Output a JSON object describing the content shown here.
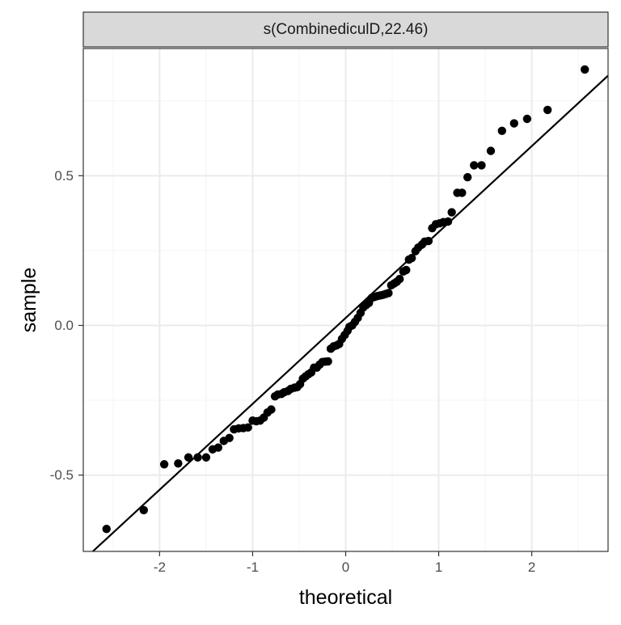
{
  "chart_data": {
    "type": "scatter",
    "title": "",
    "strip_label": "s(CombinediculD,22.46)",
    "xlabel": "theoretical",
    "ylabel": "sample",
    "xlim": [
      -2.82,
      2.82
    ],
    "ylim": [
      -0.755,
      0.925
    ],
    "x_ticks": [
      -2,
      -1,
      0,
      1,
      2
    ],
    "x_tick_labels": [
      "-2",
      "-1",
      "0",
      "1",
      "2"
    ],
    "y_ticks": [
      -0.5,
      0.0,
      0.5
    ],
    "y_tick_labels": [
      "-0.5",
      "0.0",
      "0.5"
    ],
    "grid": true,
    "theme": "black-and-white",
    "colors": {
      "panel_border": "#333333",
      "grid_major": "#ebebeb",
      "grid_minor": "#f4f4f4",
      "strip_fill": "#d9d9d9",
      "points": "#000000",
      "reference_line": "#000000"
    },
    "reference_line": {
      "intercept": 0.025,
      "slope": 0.287
    },
    "series": [
      {
        "points": [
          [
            -2.57,
            -0.68
          ],
          [
            -2.17,
            -0.617
          ],
          [
            -1.95,
            -0.464
          ],
          [
            -1.8,
            -0.461
          ],
          [
            -1.69,
            -0.441
          ],
          [
            -1.59,
            -0.441
          ],
          [
            -1.5,
            -0.441
          ],
          [
            -1.43,
            -0.414
          ],
          [
            -1.37,
            -0.408
          ],
          [
            -1.31,
            -0.386
          ],
          [
            -1.25,
            -0.376
          ],
          [
            -1.2,
            -0.347
          ],
          [
            -1.15,
            -0.344
          ],
          [
            -1.1,
            -0.343
          ],
          [
            -1.05,
            -0.341
          ],
          [
            -1.0,
            -0.318
          ],
          [
            -0.96,
            -0.32
          ],
          [
            -0.92,
            -0.318
          ],
          [
            -0.88,
            -0.308
          ],
          [
            -0.84,
            -0.291
          ],
          [
            -0.8,
            -0.281
          ],
          [
            -0.76,
            -0.237
          ],
          [
            -0.73,
            -0.231
          ],
          [
            -0.69,
            -0.229
          ],
          [
            -0.66,
            -0.223
          ],
          [
            -0.62,
            -0.219
          ],
          [
            -0.59,
            -0.212
          ],
          [
            -0.55,
            -0.208
          ],
          [
            -0.52,
            -0.206
          ],
          [
            -0.49,
            -0.196
          ],
          [
            -0.46,
            -0.178
          ],
          [
            -0.43,
            -0.17
          ],
          [
            -0.4,
            -0.163
          ],
          [
            -0.37,
            -0.157
          ],
          [
            -0.34,
            -0.141
          ],
          [
            -0.31,
            -0.141
          ],
          [
            -0.28,
            -0.131
          ],
          [
            -0.25,
            -0.122
          ],
          [
            -0.22,
            -0.121
          ],
          [
            -0.19,
            -0.12
          ],
          [
            -0.16,
            -0.078
          ],
          [
            -0.13,
            -0.07
          ],
          [
            -0.1,
            -0.067
          ],
          [
            -0.07,
            -0.062
          ],
          [
            -0.04,
            -0.045
          ],
          [
            -0.01,
            -0.032
          ],
          [
            0.02,
            -0.018
          ],
          [
            0.04,
            -0.005
          ],
          [
            0.07,
            0.0
          ],
          [
            0.1,
            0.012
          ],
          [
            0.13,
            0.025
          ],
          [
            0.16,
            0.042
          ],
          [
            0.19,
            0.06
          ],
          [
            0.22,
            0.068
          ],
          [
            0.25,
            0.075
          ],
          [
            0.28,
            0.092
          ],
          [
            0.31,
            0.095
          ],
          [
            0.34,
            0.098
          ],
          [
            0.37,
            0.1
          ],
          [
            0.4,
            0.102
          ],
          [
            0.43,
            0.105
          ],
          [
            0.46,
            0.108
          ],
          [
            0.49,
            0.134
          ],
          [
            0.52,
            0.14
          ],
          [
            0.55,
            0.146
          ],
          [
            0.58,
            0.155
          ],
          [
            0.62,
            0.18
          ],
          [
            0.65,
            0.185
          ],
          [
            0.68,
            0.22
          ],
          [
            0.71,
            0.225
          ],
          [
            0.75,
            0.248
          ],
          [
            0.78,
            0.26
          ],
          [
            0.82,
            0.27
          ],
          [
            0.85,
            0.28
          ],
          [
            0.89,
            0.282
          ],
          [
            0.93,
            0.325
          ],
          [
            0.97,
            0.338
          ],
          [
            1.01,
            0.341
          ],
          [
            1.05,
            0.345
          ],
          [
            1.1,
            0.347
          ],
          [
            1.14,
            0.378
          ],
          [
            1.2,
            0.443
          ],
          [
            1.25,
            0.443
          ],
          [
            1.31,
            0.495
          ],
          [
            1.38,
            0.535
          ],
          [
            1.46,
            0.535
          ],
          [
            1.56,
            0.583
          ],
          [
            1.68,
            0.65
          ],
          [
            1.81,
            0.675
          ],
          [
            1.95,
            0.69
          ],
          [
            2.17,
            0.72
          ],
          [
            2.57,
            0.855
          ]
        ]
      }
    ]
  }
}
